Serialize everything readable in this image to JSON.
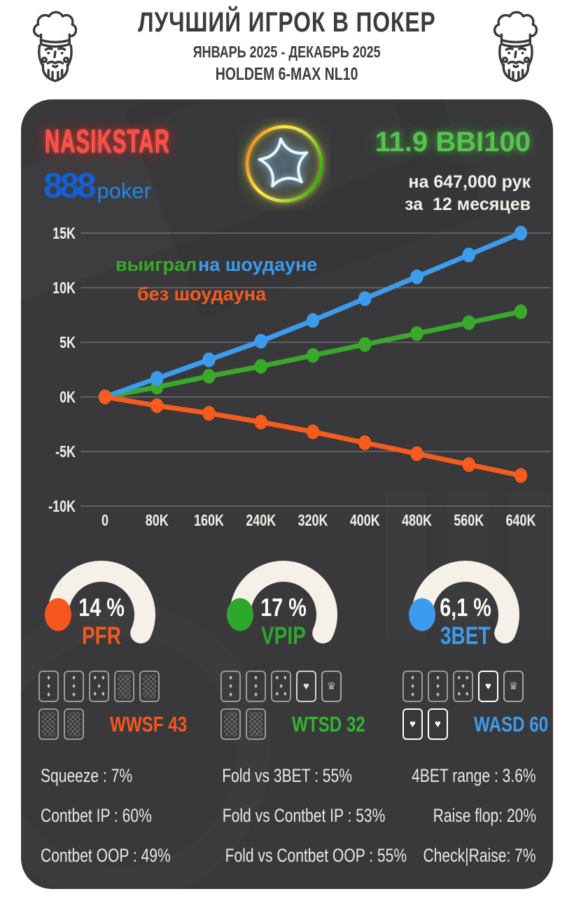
{
  "header": {
    "title": "ЛУЧШИЙ ИГРОК В ПОКЕР",
    "period": "ЯНВАРЬ 2025 - ДЕКАБРЬ 2025",
    "game": "HOLDEM 6-MAX NL10"
  },
  "player": {
    "nickname": "NASIKSTAR",
    "room_bold": "888",
    "room_light": "poker",
    "winrate": "11.9 BBI100",
    "sample_line1": "на 647,000 рук",
    "sample_line2": "за  12 месяцев"
  },
  "icons": {
    "left": "chef-king-icon",
    "right": "chef-king-icon",
    "center": "neon-star-badge"
  },
  "chart_data": {
    "type": "line",
    "title": "",
    "xlabel": "",
    "ylabel": "",
    "grid": true,
    "legend_position": "top-left-inside",
    "x": [
      0,
      80000,
      160000,
      240000,
      320000,
      400000,
      480000,
      560000,
      640000
    ],
    "x_tick_labels": [
      "0",
      "80K",
      "160K",
      "240K",
      "320K",
      "400K",
      "480K",
      "560K",
      "640K"
    ],
    "y_ticks": [
      15,
      10,
      5,
      0,
      -5,
      -10
    ],
    "y_tick_labels": [
      "15K",
      "10K",
      "5K",
      "0K",
      "-5K",
      "-10K"
    ],
    "y_unit": "K",
    "ylim": [
      -11.5,
      16
    ],
    "series": [
      {
        "name": "выиграл",
        "color": "#3aa82b",
        "values": [
          0,
          0.9,
          1.9,
          2.8,
          3.8,
          4.8,
          5.8,
          6.8,
          7.8
        ]
      },
      {
        "name": "на шоудауне",
        "color": "#3d9bed",
        "values": [
          0,
          1.7,
          3.4,
          5.1,
          7.0,
          9.0,
          11.0,
          13.0,
          15.0
        ]
      },
      {
        "name": "без шоудауна",
        "color": "#f75b1d",
        "values": [
          0,
          -0.8,
          -1.5,
          -2.3,
          -3.2,
          -4.2,
          -5.2,
          -6.2,
          -7.2
        ]
      }
    ]
  },
  "gauges": [
    {
      "value": "14 %",
      "label": "PFR",
      "color": "#f7571c"
    },
    {
      "value": "17 %",
      "label": "VPIP",
      "color": "#2ea82b"
    },
    {
      "value": "6,1 %",
      "label": "3BET",
      "color": "#3d9bed"
    }
  ],
  "hand_panels": [
    {
      "label": "WWSF 43",
      "color": "#f7571c",
      "row1": [
        "pip3",
        "pip3",
        "pip5",
        "back",
        "back"
      ],
      "row2": [
        "back",
        "back"
      ]
    },
    {
      "label": "WTSD 32",
      "color": "#2fb52f",
      "row1": [
        "pip3",
        "pip3",
        "pip5",
        "heart",
        "crown"
      ],
      "row2": [
        "back",
        "back"
      ]
    },
    {
      "label": "WASD 60",
      "color": "#3d9bed",
      "row1": [
        "pip3",
        "pip3",
        "pip5",
        "heart_bright",
        "crown"
      ],
      "row2": [
        "heart_bright",
        "heart_bright"
      ]
    }
  ],
  "stats": {
    "col1": [
      "Squeeze : 7%",
      "Contbet IP : 60%",
      "Contbet OOP : 49%"
    ],
    "col2": [
      "Fold vs 3BET : 55%",
      "Fold vs Contbet IP : 53%",
      "Fold vs Contbet OOP : 55%"
    ],
    "col3": [
      "4BET range : 3.6%",
      "Raise flop: 20%",
      "Check|Raise: 7%"
    ]
  },
  "colors": {
    "card_bg": "#39393b",
    "nickname": "#ff5149",
    "room_bold": "#1360d4",
    "room_light": "#2086e8",
    "winrate": "#55c44e",
    "gauge_arc": "#f5f1e8",
    "text_light": "#f2efe9"
  }
}
